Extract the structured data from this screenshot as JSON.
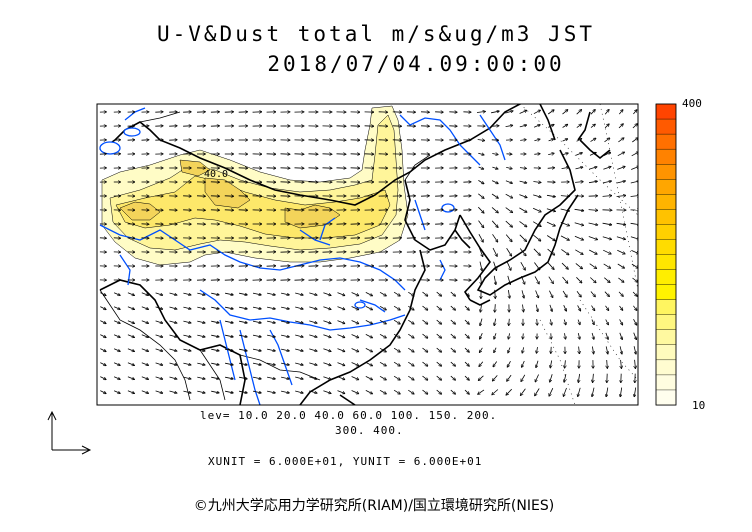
{
  "title": {
    "line1": "U-V&Dust total m/s&ug/m3 JST",
    "line2": "2018/07/04.09:00:00"
  },
  "contour_label": "40.0",
  "levels": {
    "line1": "lev= 10.0 20.0 40.0 60.0 100. 150. 200.",
    "line2": "300. 400."
  },
  "units": "XUNIT = 6.000E+01, YUNIT = 6.000E+01",
  "colorbar": {
    "max_label": "400",
    "min_label": "10",
    "colors": [
      "#ff4400",
      "#ff5a00",
      "#ff7000",
      "#ff8200",
      "#ff9400",
      "#ffa600",
      "#ffb400",
      "#ffc200",
      "#ffd000",
      "#ffdc00",
      "#ffe600",
      "#ffee00",
      "#fff300",
      "#fff560",
      "#fff780",
      "#fff9a0",
      "#fffbbd",
      "#fffcd0",
      "#fffde0",
      "#fffeee"
    ]
  },
  "copyright": "©九州大学応用力学研究所(RIAM)/国立環境研究所(NIES)",
  "colors": {
    "coast": "#000000",
    "river": "#0050ff",
    "dust_light": "#fffcc6",
    "dust_mid": "#fff59a",
    "dust_dark": "#fde86a",
    "dust_core": "#f3d45a"
  }
}
